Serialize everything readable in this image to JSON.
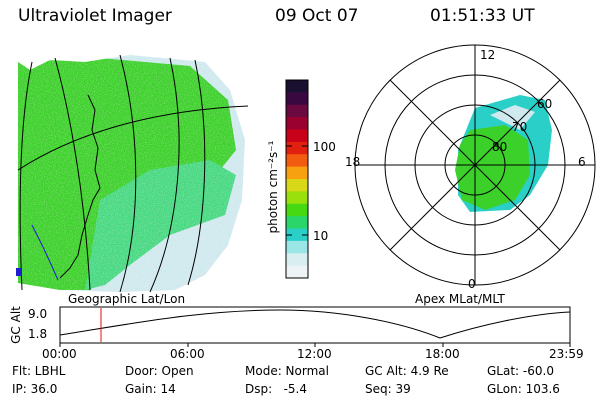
{
  "header": {
    "instrument": "Ultraviolet Imager",
    "date": "09 Oct 07",
    "time": "01:51:33 UT"
  },
  "colorbar": {
    "unit_label": "photon cm⁻²s⁻¹",
    "ticks": [
      "100",
      "10"
    ],
    "colors": [
      "#1a1030",
      "#3a0840",
      "#6a0a40",
      "#9a0030",
      "#c80018",
      "#e22010",
      "#f25c10",
      "#f7a010",
      "#d8d818",
      "#9ae00c",
      "#46d810",
      "#2ad66a",
      "#2ad0c8",
      "#9ae6e6",
      "#d8eef0",
      "#eef4f6"
    ]
  },
  "geo_map": {
    "label": "Geographic Lat/Lon",
    "colors": {
      "bright": "#3cd02a",
      "mid": "#46d880",
      "diffuse": "#cfe9ee",
      "coast": "#1f1fcf"
    }
  },
  "polar_plot": {
    "label": "Apex MLat/MLT",
    "hour_labels": [
      "12",
      "18",
      "6",
      "0"
    ],
    "lat_labels": [
      "60",
      "70",
      "80"
    ]
  },
  "alt_panel": {
    "ylabel": "GC Alt",
    "yticks": [
      "9.0",
      "1.8"
    ],
    "xticks": [
      "00:00",
      "06:00",
      "12:00",
      "18:00",
      "23:59"
    ],
    "marker_color": "#e01010"
  },
  "info": {
    "flt": "Flt: LBHL",
    "door": "Door: Open",
    "mode": "Mode: Normal",
    "gc_alt": "GC Alt: 4.9 Re",
    "glat": "GLat: -60.0",
    "ip": "IP: 36.0",
    "gain": "Gain: 14",
    "dsp": "Dsp:   -5.4",
    "seq": "Seq: 39",
    "glon": "GLon: 103.6"
  }
}
